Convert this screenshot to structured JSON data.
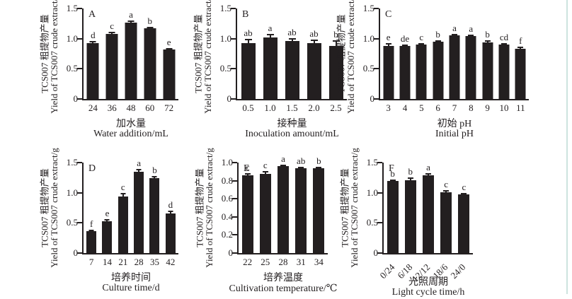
{
  "figure": {
    "background": "#ffffff",
    "bar_color": "#231f20",
    "axis_color": "#231f20",
    "error_bar_color": "#231f20",
    "right_edge_line_color": "#cde4df"
  },
  "chart_data": [
    {
      "type": "bar",
      "panel_label": "A",
      "categories": [
        "24",
        "36",
        "48",
        "60",
        "72"
      ],
      "values": [
        0.92,
        1.08,
        1.27,
        1.17,
        0.82
      ],
      "errors": [
        0.025,
        0.02,
        0.02,
        0.012,
        0.012
      ],
      "sig_letters": [
        "d",
        "c",
        "a",
        "b",
        "e"
      ],
      "ylabel_cn": "TCS007 粗提物产量",
      "ylabel_en": "Yield of TCS007 crude extract/g",
      "xlabel_cn": "加水量",
      "xlabel_en": "Water addition/mL",
      "ylim": [
        0,
        1.5
      ],
      "ytick_values": [
        0,
        0.5,
        1.0,
        1.5
      ],
      "ytick_labels": [
        "0",
        "0.5",
        "1.0",
        "1.5"
      ],
      "xticks_rotated": false,
      "grid": false,
      "legend": null
    },
    {
      "type": "bar",
      "panel_label": "B",
      "categories": [
        "0.5",
        "1.0",
        "1.5",
        "2.0",
        "2.5"
      ],
      "values": [
        0.93,
        1.02,
        0.96,
        0.92,
        0.88
      ],
      "errors": [
        0.06,
        0.05,
        0.035,
        0.05,
        0.08
      ],
      "sig_letters": [
        "ab",
        "a",
        "ab",
        "ab",
        "b"
      ],
      "ylabel_cn": "TCS007 粗提物产量",
      "ylabel_en": "Yield of TCS007 crude extract/g",
      "xlabel_cn": "接种量",
      "xlabel_en": "Inoculation amount/mL",
      "ylim": [
        0,
        1.5
      ],
      "ytick_values": [
        0,
        0.5,
        1.0,
        1.5
      ],
      "ytick_labels": [
        "0",
        "0.5",
        "1.0",
        "1.5"
      ],
      "xticks_rotated": false,
      "grid": false,
      "legend": null
    },
    {
      "type": "bar",
      "panel_label": "C",
      "categories": [
        "3",
        "4",
        "5",
        "6",
        "7",
        "8",
        "9",
        "10",
        "11"
      ],
      "values": [
        0.88,
        0.88,
        0.9,
        0.95,
        1.05,
        1.04,
        0.94,
        0.9,
        0.83
      ],
      "errors": [
        0.03,
        0.015,
        0.02,
        0.012,
        0.012,
        0.012,
        0.02,
        0.015,
        0.02
      ],
      "sig_letters": [
        "e",
        "de",
        "c",
        "b",
        "a",
        "a",
        "b",
        "cd",
        "f"
      ],
      "ylabel_cn": "TCS007 粗提物产量",
      "ylabel_en": "Yield of TCS007 crude extract/g",
      "xlabel_cn": "初始 pH",
      "xlabel_en": "Initial pH",
      "ylim": [
        0,
        1.5
      ],
      "ytick_values": [
        0,
        0.5,
        1.0,
        1.5
      ],
      "ytick_labels": [
        "0",
        "0.5",
        "1.0",
        "1.5"
      ],
      "xticks_rotated": false,
      "grid": false,
      "legend": null
    },
    {
      "type": "bar",
      "panel_label": "D",
      "categories": [
        "7",
        "14",
        "21",
        "28",
        "35",
        "42"
      ],
      "values": [
        0.36,
        0.53,
        0.94,
        1.35,
        1.24,
        0.66
      ],
      "errors": [
        0.02,
        0.025,
        0.045,
        0.03,
        0.025,
        0.03
      ],
      "sig_letters": [
        "f",
        "e",
        "c",
        "a",
        "b",
        "d"
      ],
      "ylabel_cn": "TCS007 粗提物产量",
      "ylabel_en": "Yield of TCS007 crude extract/g",
      "xlabel_cn": "培养时间",
      "xlabel_en": "Culture time/d",
      "ylim": [
        0,
        1.5
      ],
      "ytick_values": [
        0,
        0.5,
        1.0,
        1.5
      ],
      "ytick_labels": [
        "0",
        "0.5",
        "1.0",
        "1.5"
      ],
      "xticks_rotated": false,
      "grid": false,
      "legend": null
    },
    {
      "type": "bar",
      "panel_label": "E",
      "categories": [
        "22",
        "25",
        "28",
        "31",
        "34"
      ],
      "values": [
        0.86,
        0.875,
        0.96,
        0.94,
        0.935
      ],
      "errors": [
        0.015,
        0.02,
        0.008,
        0.008,
        0.008
      ],
      "sig_letters": [
        "c",
        "c",
        "a",
        "ab",
        "b"
      ],
      "ylabel_cn": "TCS007 粗提物产量",
      "ylabel_en": "Yield of TCS007 crude extract/g",
      "xlabel_cn": "培养温度",
      "xlabel_en": "Cultivation temperature/℃",
      "ylim": [
        0,
        1.0
      ],
      "ytick_values": [
        0,
        0.2,
        0.4,
        0.6,
        0.8,
        1.0
      ],
      "ytick_labels": [
        "0",
        "0.2",
        "0.4",
        "0.6",
        "0.8",
        "1.0"
      ],
      "xticks_rotated": false,
      "grid": false,
      "legend": null
    },
    {
      "type": "bar",
      "panel_label": "F",
      "categories": [
        "0/24",
        "6/18",
        "12/12",
        "18/6",
        "24/0"
      ],
      "values": [
        1.19,
        1.21,
        1.29,
        1.01,
        0.97
      ],
      "errors": [
        0.02,
        0.03,
        0.025,
        0.025,
        0.018
      ],
      "sig_letters": [
        "b",
        "b",
        "a",
        "c",
        "c"
      ],
      "ylabel_cn": "TCS007 粗提物产量",
      "ylabel_en": "Yield of TCS007 crude extract/g",
      "xlabel_cn": "光照周期",
      "xlabel_en": "Light cycle time/h",
      "ylim": [
        0,
        1.5
      ],
      "ytick_values": [
        0,
        0.5,
        1.0,
        1.5
      ],
      "ytick_labels": [
        "0",
        "0.5",
        "1.0",
        "1.5"
      ],
      "xticks_rotated": true,
      "grid": false,
      "legend": null
    }
  ]
}
